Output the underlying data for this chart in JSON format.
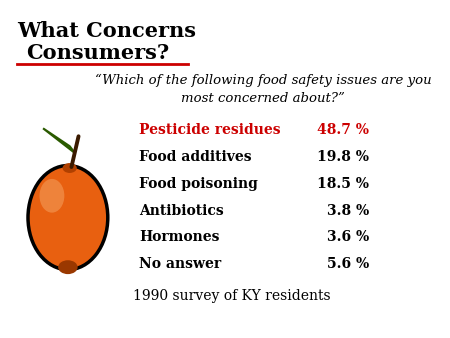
{
  "title_line1": "What Concerns",
  "title_line2": "Consumers?",
  "title_color": "#000000",
  "title_fontsize": 15,
  "underline_color": "#cc0000",
  "question": "“Which of the following food safety issues are you\nmost concerned about?”",
  "question_fontsize": 9.5,
  "rows": [
    {
      "label": "Pesticide residues",
      "value": "48.7 %",
      "highlight": true
    },
    {
      "label": "Food additives",
      "value": "19.8 %",
      "highlight": false
    },
    {
      "label": "Food poisoning",
      "value": "18.5 %",
      "highlight": false
    },
    {
      "label": "Antibiotics",
      "value": "3.8 %",
      "highlight": false
    },
    {
      "label": "Hormones",
      "value": "3.6 %",
      "highlight": false
    },
    {
      "label": "No answer",
      "value": "5.6 %",
      "highlight": false
    }
  ],
  "highlight_color": "#cc0000",
  "normal_color": "#000000",
  "row_fontsize": 10,
  "footer": "1990 survey of KY residents",
  "footer_fontsize": 10,
  "bg_color": "#ffffff"
}
